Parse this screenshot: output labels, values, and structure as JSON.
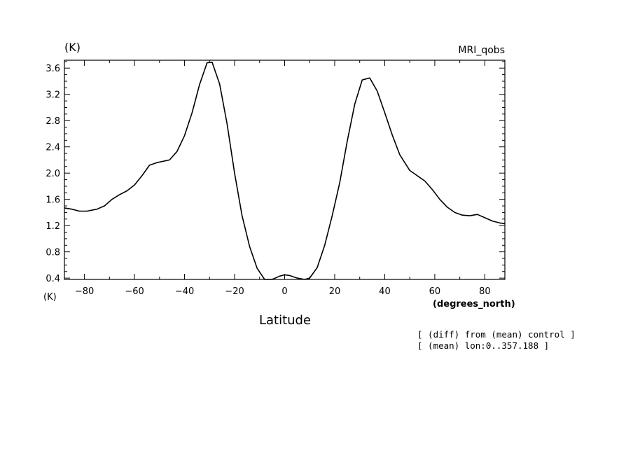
{
  "chart_data": {
    "type": "line",
    "title": "MRI_qobs",
    "ylabel_top": "(K)",
    "ylabel_bottom": "(K)",
    "xlabel": "Latitude",
    "xunit": "(degrees_north)",
    "xlim": [
      -88,
      88
    ],
    "ylim": [
      0.38,
      3.72
    ],
    "xticks": [
      -80,
      -60,
      -40,
      -20,
      0,
      20,
      40,
      60,
      80
    ],
    "yticks": [
      0.4,
      0.8,
      1.2,
      1.6,
      2.0,
      2.4,
      2.8,
      3.2,
      3.6
    ],
    "ytick_labels": [
      "0.4",
      "0.8",
      "1.2",
      "1.6",
      "2.0",
      "2.4",
      "2.8",
      "3.2",
      "3.6"
    ],
    "xtick_labels": [
      "−80",
      "−60",
      "−40",
      "−20",
      "0",
      "20",
      "40",
      "60",
      "80"
    ],
    "notes": [
      "[ (diff) from (mean) control ]",
      "[ (mean) lon:0..357.188 ]"
    ],
    "grid": false,
    "series": [
      {
        "x": [
          -88,
          -85,
          -82,
          -79,
          -75,
          -72,
          -69,
          -66,
          -63,
          -60,
          -57,
          -54,
          -51,
          -46,
          -43,
          -40,
          -37,
          -34,
          -31,
          -29,
          -26,
          -23,
          -20,
          -17,
          -14,
          -11,
          -8,
          -5,
          -2,
          0,
          2,
          5,
          8,
          10,
          13,
          16,
          19,
          22,
          25,
          28,
          31,
          34,
          37,
          40,
          43,
          46,
          50,
          53,
          56,
          59,
          62,
          65,
          68,
          71,
          74,
          77,
          80,
          83,
          86,
          88
        ],
        "y": [
          1.47,
          1.45,
          1.42,
          1.42,
          1.45,
          1.5,
          1.6,
          1.67,
          1.73,
          1.82,
          1.96,
          2.12,
          2.16,
          2.2,
          2.33,
          2.57,
          2.92,
          3.35,
          3.68,
          3.69,
          3.36,
          2.75,
          2.0,
          1.35,
          0.88,
          0.55,
          0.37,
          0.37,
          0.43,
          0.45,
          0.44,
          0.4,
          0.37,
          0.4,
          0.56,
          0.9,
          1.35,
          1.85,
          2.48,
          3.05,
          3.42,
          3.45,
          3.25,
          2.92,
          2.58,
          2.28,
          2.04,
          1.96,
          1.88,
          1.75,
          1.6,
          1.48,
          1.4,
          1.36,
          1.35,
          1.37,
          1.32,
          1.27,
          1.24,
          1.23
        ]
      }
    ]
  }
}
